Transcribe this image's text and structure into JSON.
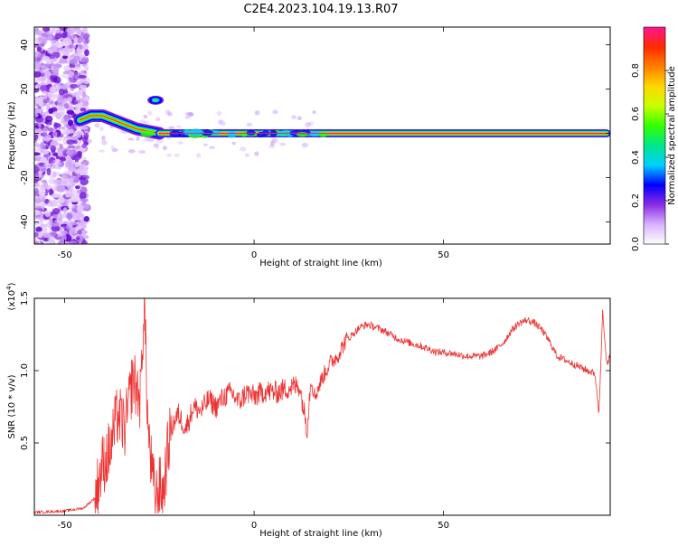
{
  "page_title": "C2E4.2023.104.19.13.R07",
  "chart_data": [
    {
      "type": "heatmap",
      "title": "C2E4.2023.104.19.13.R07",
      "xlabel": "Height of straight line (km)",
      "ylabel": "Frequency (Hz)",
      "xlim": [
        -58,
        94
      ],
      "ylim": [
        -50,
        48
      ],
      "x_ticks": [
        -50,
        0,
        50
      ],
      "y_ticks": [
        -40,
        -20,
        0,
        20,
        40
      ],
      "colorbar": {
        "label": "Normalized spectral amplitude",
        "range": [
          0,
          1
        ],
        "ticks": [
          "0.0",
          "0.2",
          "0.4",
          "0.6",
          "0.8"
        ],
        "tick_values": [
          0,
          0.2,
          0.4,
          0.6,
          0.8
        ],
        "colors": [
          "#ffffff",
          "#d9b3ff",
          "#8a2be2",
          "#0000ff",
          "#00d0ff",
          "#00e68a",
          "#33ff00",
          "#c8ff00",
          "#ffd700",
          "#ff7f00",
          "#ff2a00",
          "#ff1493"
        ]
      },
      "main_signal": {
        "frequency_hz": 0,
        "x_start": -25,
        "x_end": 93,
        "early_track": [
          [
            -46,
            6
          ],
          [
            -43,
            8
          ],
          [
            -40,
            8
          ],
          [
            -37,
            6
          ],
          [
            -34,
            4
          ],
          [
            -31,
            2
          ],
          [
            -28,
            1
          ],
          [
            -25,
            0
          ]
        ],
        "isolated_patch": {
          "x": -26,
          "y": 15
        }
      },
      "noise_region": {
        "x_start": -58,
        "x_end": -44,
        "y_range": [
          -50,
          48
        ]
      }
    },
    {
      "type": "line",
      "xlabel": "Height of straight line (km)",
      "ylabel": "SNR (10 * v/v)",
      "y_multiplier": "(x10",
      "y_multiplier_exp": "4",
      "y_multiplier_close": ")",
      "xlim": [
        -58,
        94
      ],
      "ylim": [
        0,
        1.5
      ],
      "x_ticks": [
        -50,
        0,
        50
      ],
      "y_ticks": [
        0.5,
        1.0,
        1.5
      ],
      "y_tick_labels": [
        "0.5",
        "1.0",
        "1.5"
      ],
      "color": "#ee3333",
      "series": [
        {
          "name": "SNR",
          "x": [
            -58,
            -50,
            -45,
            -42,
            -40,
            -38,
            -36,
            -34,
            -32,
            -30,
            -29,
            -28,
            -27,
            -26,
            -25,
            -24,
            -23,
            -22,
            -20,
            -18,
            -16,
            -14,
            -12,
            -10,
            -8,
            -6,
            -4,
            -2,
            0,
            3,
            6,
            9,
            12,
            14,
            15,
            16,
            18,
            20,
            22,
            24,
            26,
            28,
            30,
            32,
            34,
            36,
            38,
            40,
            44,
            48,
            52,
            56,
            60,
            62,
            64,
            66,
            68,
            70,
            72,
            74,
            76,
            78,
            80,
            84,
            88,
            90,
            91,
            92,
            93,
            94
          ],
          "y": [
            0.02,
            0.03,
            0.05,
            0.12,
            0.35,
            0.45,
            0.7,
            0.6,
            0.95,
            0.8,
            1.5,
            0.6,
            0.3,
            0.1,
            0.2,
            0.15,
            0.4,
            0.6,
            0.7,
            0.6,
            0.75,
            0.72,
            0.8,
            0.75,
            0.82,
            0.85,
            0.78,
            0.85,
            0.82,
            0.86,
            0.85,
            0.88,
            0.9,
            0.6,
            0.95,
            0.82,
            0.95,
            1.05,
            1.1,
            1.2,
            1.25,
            1.3,
            1.32,
            1.3,
            1.28,
            1.25,
            1.22,
            1.2,
            1.17,
            1.13,
            1.12,
            1.1,
            1.1,
            1.12,
            1.15,
            1.2,
            1.28,
            1.33,
            1.35,
            1.33,
            1.28,
            1.2,
            1.1,
            1.05,
            1.0,
            0.98,
            0.7,
            1.4,
            1.05,
            1.1
          ]
        }
      ]
    }
  ]
}
